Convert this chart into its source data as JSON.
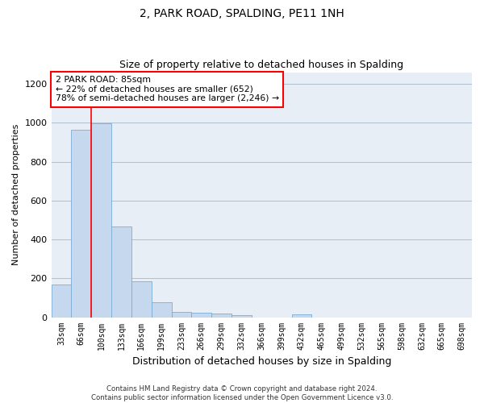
{
  "title1": "2, PARK ROAD, SPALDING, PE11 1NH",
  "title2": "Size of property relative to detached houses in Spalding",
  "xlabel": "Distribution of detached houses by size in Spalding",
  "ylabel": "Number of detached properties",
  "bar_color": "#c5d8ee",
  "bar_edge_color": "#7aadd4",
  "grid_color": "#b0bfd0",
  "bg_color": "#e8eef5",
  "categories": [
    "33sqm",
    "66sqm",
    "100sqm",
    "133sqm",
    "166sqm",
    "199sqm",
    "233sqm",
    "266sqm",
    "299sqm",
    "332sqm",
    "366sqm",
    "399sqm",
    "432sqm",
    "465sqm",
    "499sqm",
    "532sqm",
    "565sqm",
    "598sqm",
    "632sqm",
    "665sqm",
    "698sqm"
  ],
  "values": [
    170,
    965,
    995,
    468,
    185,
    75,
    28,
    22,
    18,
    10,
    0,
    0,
    15,
    0,
    0,
    0,
    0,
    0,
    0,
    0,
    0
  ],
  "ylim": [
    0,
    1260
  ],
  "yticks": [
    0,
    200,
    400,
    600,
    800,
    1000,
    1200
  ],
  "annotation_text": "2 PARK ROAD: 85sqm\n← 22% of detached houses are smaller (652)\n78% of semi-detached houses are larger (2,246) →",
  "annotation_box_color": "white",
  "annotation_box_edge": "red",
  "vline_x": 1.5,
  "vline_color": "red",
  "footnote": "Contains HM Land Registry data © Crown copyright and database right 2024.\nContains public sector information licensed under the Open Government Licence v3.0."
}
